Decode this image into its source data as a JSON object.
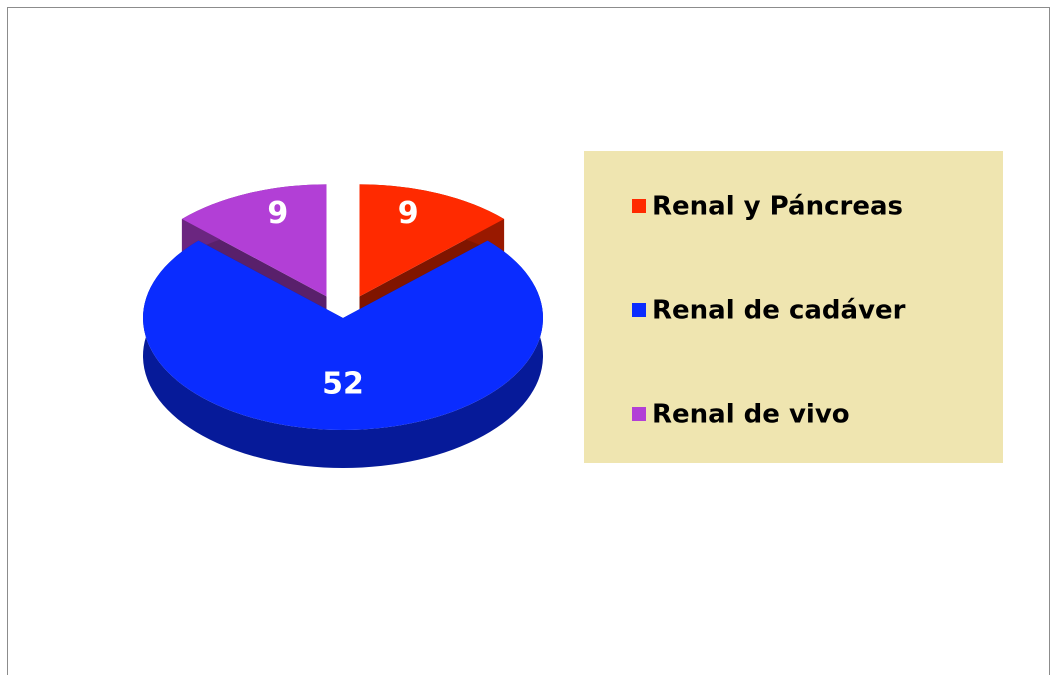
{
  "chart_data": {
    "type": "pie",
    "categories": [
      "Renal y Páncreas",
      "Renal de cadáver",
      "Renal de vivo"
    ],
    "values": [
      9,
      52,
      9
    ],
    "colors": [
      "#ff2a00",
      "#0a2cff",
      "#b23fd6"
    ]
  }
}
